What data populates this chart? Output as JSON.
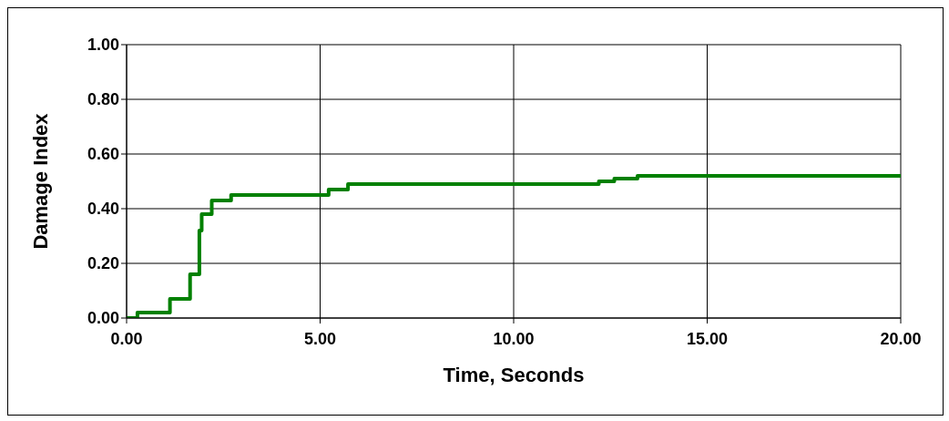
{
  "chart_data": {
    "type": "step",
    "xlabel": "Time, Seconds",
    "ylabel": "Damage Index",
    "xlim": [
      0,
      20
    ],
    "xticks": [
      {
        "value": 0,
        "label": "0.00"
      },
      {
        "value": 5,
        "label": "5.00"
      },
      {
        "value": 10,
        "label": "10.00"
      },
      {
        "value": 15,
        "label": "15.00"
      },
      {
        "value": 20,
        "label": "20.00"
      }
    ],
    "ylim": [
      0,
      1
    ],
    "yticks": [
      {
        "value": 0,
        "label": "0.00"
      },
      {
        "value": 0.2,
        "label": "0.20"
      },
      {
        "value": 0.4,
        "label": "0.40"
      },
      {
        "value": 0.6,
        "label": "0.60"
      },
      {
        "value": 0.8,
        "label": "0.80"
      },
      {
        "value": 1,
        "label": "1.00"
      }
    ],
    "grid": true,
    "legend": false,
    "marker": "none",
    "line_style": "solid",
    "series": [
      {
        "color": "#008000",
        "x": [
          0,
          0.28,
          0.92,
          1.12,
          1.56,
          1.64,
          1.82,
          1.88,
          1.94,
          2.12,
          2.2,
          2.56,
          2.7,
          5.04,
          5.22,
          5.64,
          5.72,
          11.8,
          12.2,
          12.6,
          13.2,
          20
        ],
        "values": [
          0,
          0.02,
          0.02,
          0.07,
          0.07,
          0.16,
          0.16,
          0.32,
          0.38,
          0.38,
          0.43,
          0.43,
          0.45,
          0.45,
          0.47,
          0.47,
          0.49,
          0.49,
          0.5,
          0.51,
          0.52,
          0.52
        ]
      }
    ]
  }
}
